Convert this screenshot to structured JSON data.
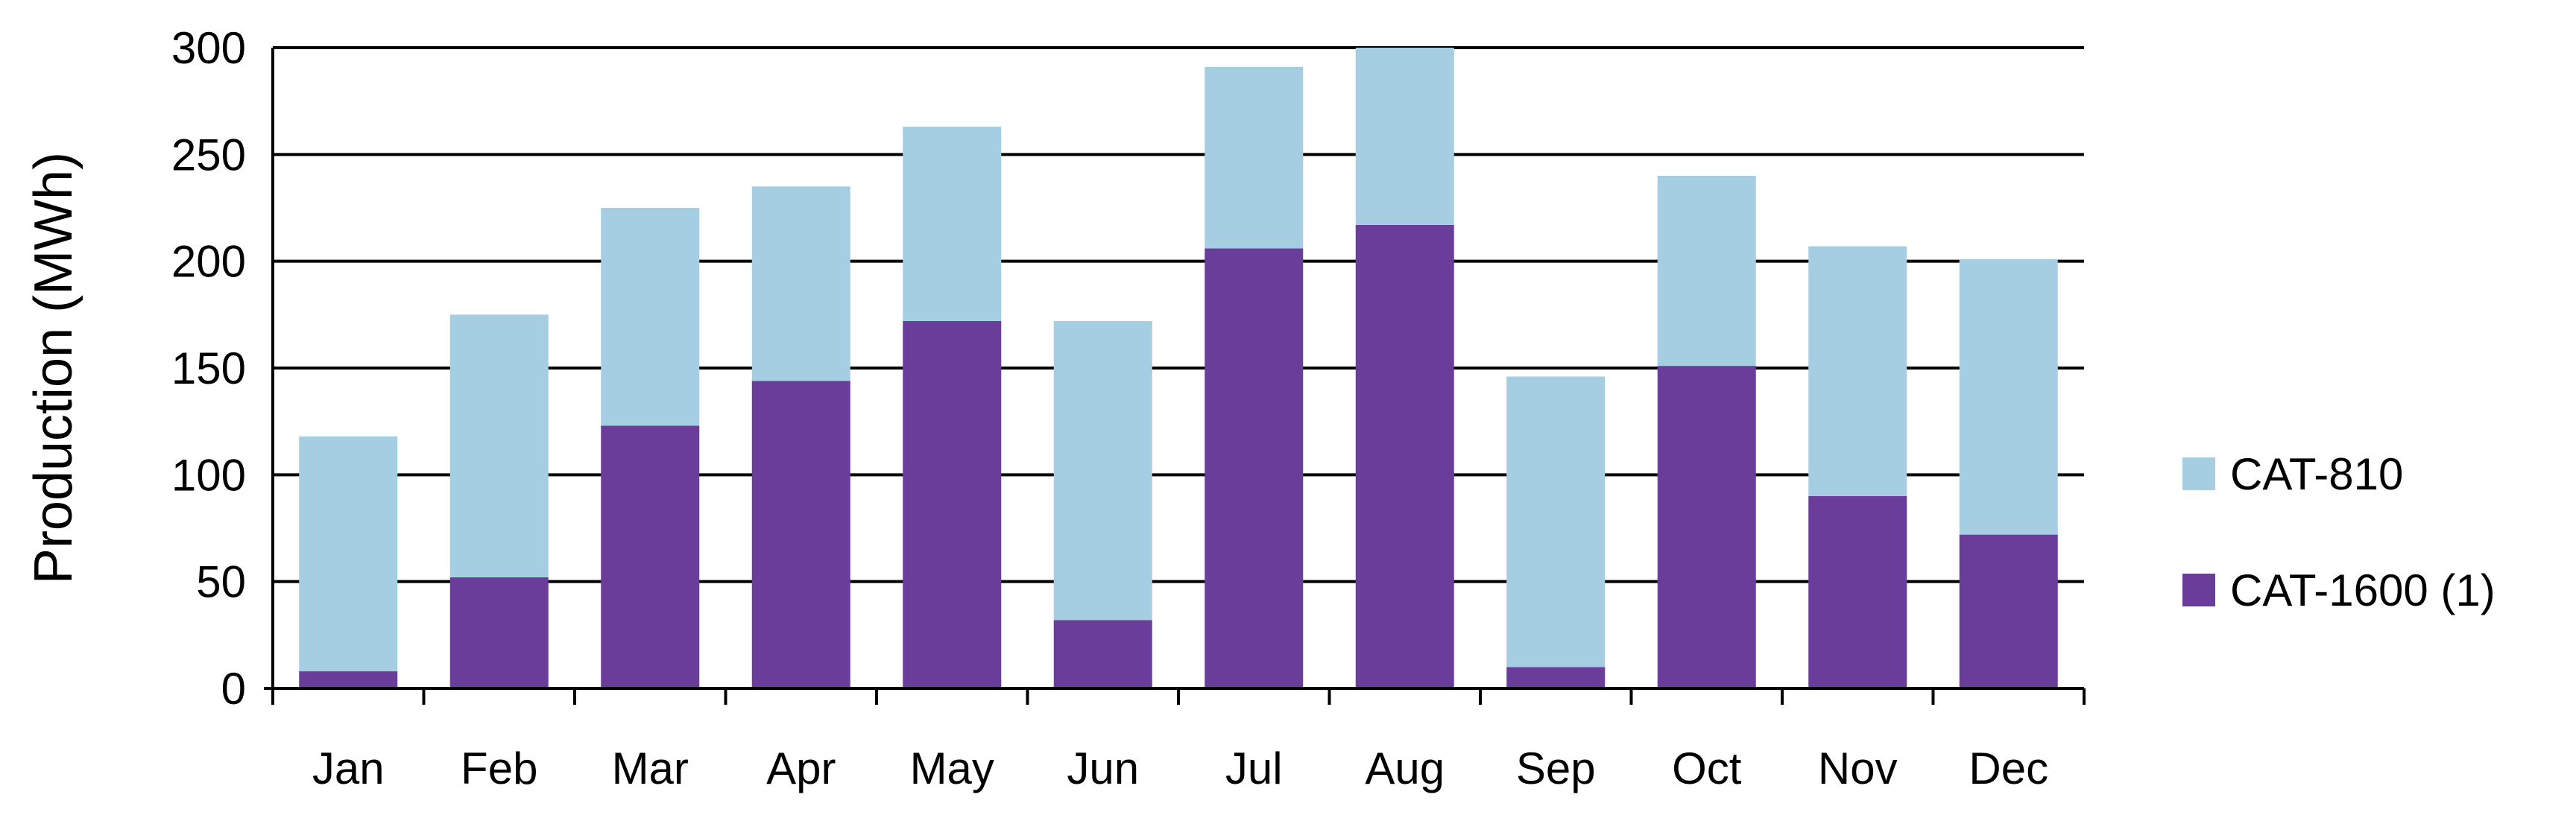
{
  "chart_data": {
    "type": "bar",
    "stacked": true,
    "title": "",
    "xlabel": "",
    "ylabel": "Production (MWh)",
    "ylim": [
      0,
      300
    ],
    "yticks": [
      0,
      50,
      100,
      150,
      200,
      250,
      300
    ],
    "grid": true,
    "legend_position": "right",
    "categories": [
      "Jan",
      "Feb",
      "Mar",
      "Apr",
      "May",
      "Jun",
      "Jul",
      "Aug",
      "Sep",
      "Oct",
      "Nov",
      "Dec"
    ],
    "series": [
      {
        "name": "CAT-1600 (1)",
        "color": "#6a3d9a",
        "values": [
          8,
          52,
          123,
          144,
          172,
          32,
          206,
          217,
          10,
          151,
          90,
          72
        ]
      },
      {
        "name": "CAT-810",
        "color": "#a6cee3",
        "values": [
          110,
          123,
          102,
          91,
          91,
          140,
          85,
          83,
          136,
          89,
          117,
          129
        ]
      }
    ],
    "legend_order": [
      "CAT-810",
      "CAT-1600 (1)"
    ]
  }
}
